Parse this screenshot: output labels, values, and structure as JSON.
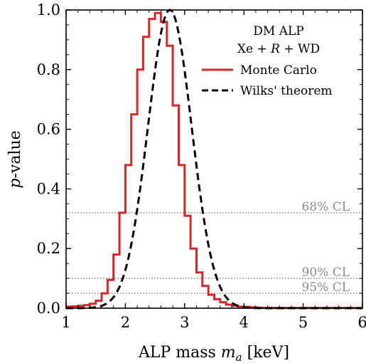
{
  "chart_data": {
    "type": "line",
    "xlabel_text": "ALP mass ",
    "xlabel_var": "m",
    "xlabel_sub": "a",
    "xlabel_unit": " [keV]",
    "ylabel_var": "p",
    "ylabel_text": "-value",
    "xlim": [
      1,
      6
    ],
    "ylim": [
      0,
      1.0
    ],
    "x_ticks": [
      "1",
      "2",
      "3",
      "4",
      "5",
      "6"
    ],
    "y_ticks": [
      "0.0",
      "0.2",
      "0.4",
      "0.6",
      "0.8",
      "1.0"
    ],
    "grid": false,
    "legend": {
      "position": "top-right",
      "title_line1": "DM ALP",
      "title_line2_a": "Xe + ",
      "title_line2_r": "R",
      "title_line2_b": " + WD",
      "entries": [
        {
          "name": "Monte Carlo",
          "color": "#d62728",
          "style": "solid"
        },
        {
          "name": "Wilks' theorem",
          "color": "#000000",
          "style": "dashed"
        }
      ]
    },
    "reference_lines": [
      {
        "label": "68% CL",
        "y": 0.32
      },
      {
        "label": "90% CL",
        "y": 0.1
      },
      {
        "label": "95% CL",
        "y": 0.05
      }
    ],
    "series": [
      {
        "name": "Monte Carlo",
        "style": "step",
        "color": "#d62728",
        "x": [
          1.0,
          1.1,
          1.2,
          1.3,
          1.4,
          1.5,
          1.6,
          1.7,
          1.8,
          1.9,
          2.0,
          2.1,
          2.2,
          2.3,
          2.4,
          2.5,
          2.6,
          2.7,
          2.8,
          2.9,
          3.0,
          3.1,
          3.2,
          3.3,
          3.4,
          3.5,
          3.6,
          3.7,
          3.8,
          3.9,
          4.0,
          4.1,
          4.2,
          4.3,
          4.4,
          4.5,
          6.0
        ],
        "y": [
          0.005,
          0.006,
          0.008,
          0.01,
          0.015,
          0.025,
          0.05,
          0.095,
          0.18,
          0.32,
          0.48,
          0.65,
          0.8,
          0.91,
          0.97,
          0.99,
          0.96,
          0.88,
          0.68,
          0.48,
          0.31,
          0.2,
          0.12,
          0.075,
          0.045,
          0.03,
          0.02,
          0.012,
          0.008,
          0.005,
          0.004,
          0.003,
          0.002,
          0.001,
          0.001,
          0.001,
          0.001
        ]
      },
      {
        "name": "Wilks' theorem",
        "style": "curve",
        "color": "#000000",
        "peak_x": 2.75,
        "sigma": 0.37
      }
    ]
  }
}
